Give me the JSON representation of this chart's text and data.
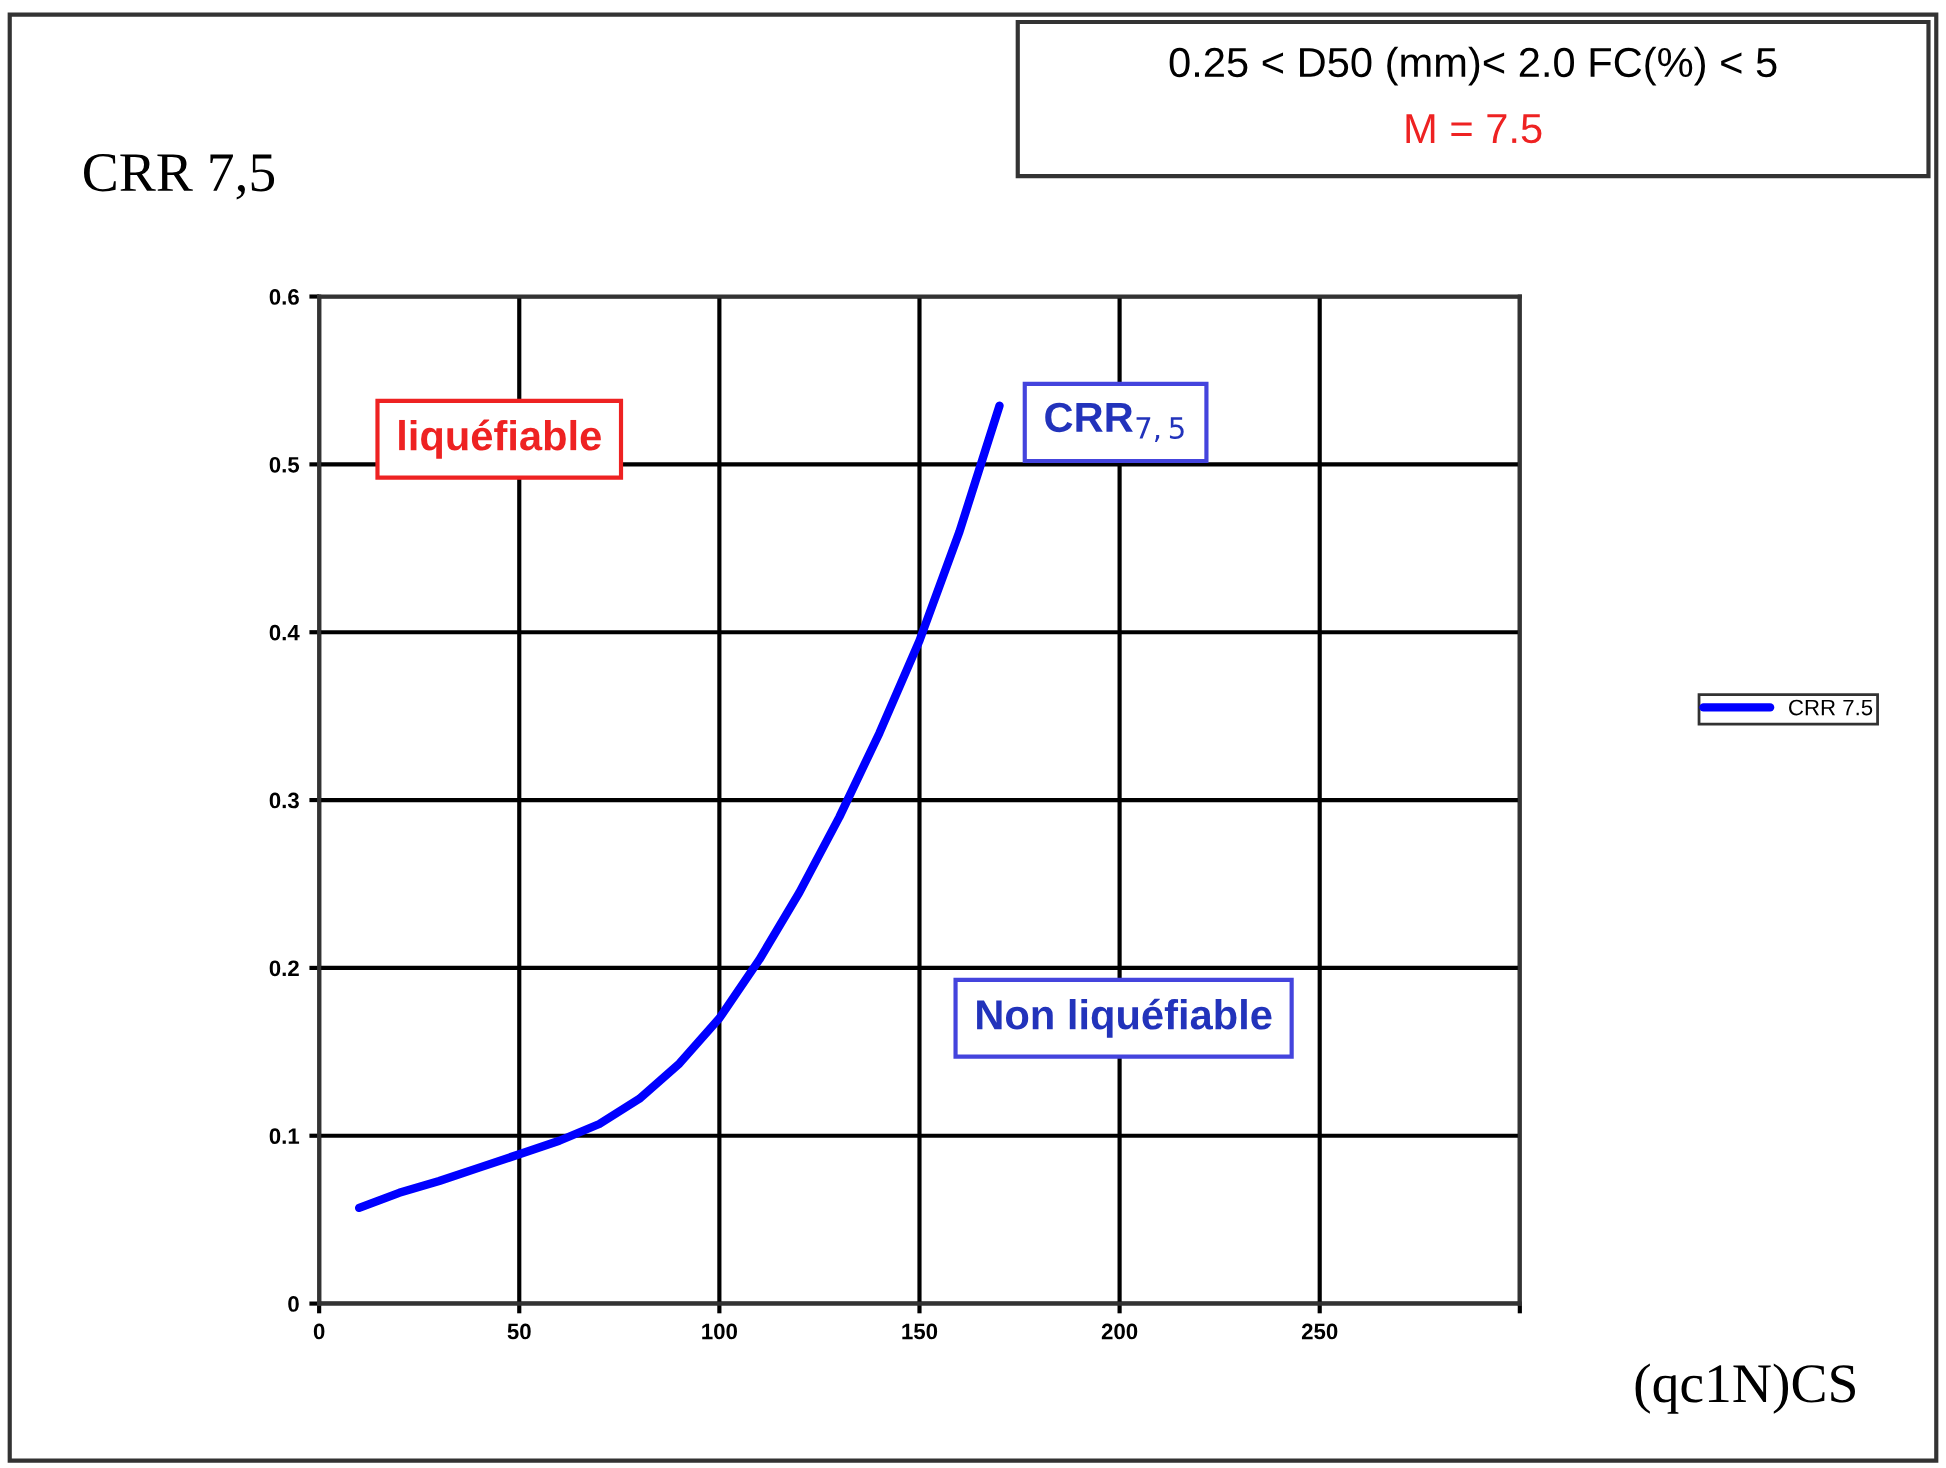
{
  "chart_data": {
    "type": "line",
    "ylabel": "CRR 7,5",
    "xlabel": "(qc1N)CS",
    "annotations": [
      "0.25 < D50 (mm)< 2.0 FC(%) < 5",
      "M = 7.5",
      "liquéfiable",
      "CRR$_{7,5}$",
      "Non liquéfiable"
    ],
    "x": [
      10,
      20,
      30,
      40,
      50,
      60,
      70,
      80,
      90,
      100,
      110,
      120,
      130,
      140,
      150,
      160,
      170
    ],
    "series": [
      {
        "name": "CRR 7.5",
        "color": "#0000ff",
        "values": [
          0.057,
          0.066,
          0.073,
          0.081,
          0.089,
          0.097,
          0.107,
          0.122,
          0.143,
          0.17,
          0.205,
          0.245,
          0.29,
          0.34,
          0.395,
          0.46,
          0.535
        ]
      }
    ],
    "xlim": [
      0,
      300
    ],
    "xticks": [
      0,
      50,
      100,
      150,
      200,
      250,
      {
        "value": 300,
        "label": null
      }
    ],
    "ylim": [
      0,
      0.6
    ],
    "yticks": [
      0,
      0.1,
      0.2,
      0.3,
      0.4,
      0.5,
      0.6
    ],
    "grid": true,
    "legend": "right",
    "marker": "none",
    "line_style": "solid"
  }
}
